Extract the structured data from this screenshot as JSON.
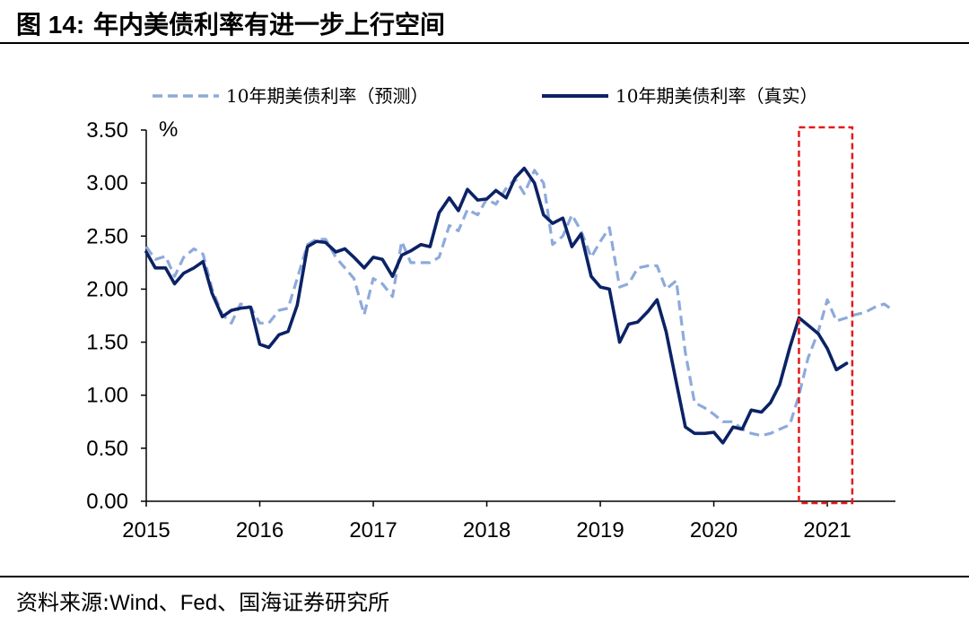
{
  "figure": {
    "label": "图 14:",
    "title": "年内美债利率有进一步上行空间",
    "source_prefix": "资料来源:",
    "source_body": "Wind、Fed、国海证券研究所"
  },
  "chart_data": {
    "type": "line",
    "title": "年内美债利率有进一步上行空间",
    "xlabel": "",
    "ylabel": "%",
    "ylim": [
      0,
      3.5
    ],
    "xlim": [
      2015.0,
      2021.6
    ],
    "y_ticks": [
      "0.00",
      "0.50",
      "1.00",
      "1.50",
      "2.00",
      "2.50",
      "3.00",
      "3.50"
    ],
    "x_ticks": [
      "2015",
      "2016",
      "2017",
      "2018",
      "2019",
      "2020",
      "2021"
    ],
    "grid": false,
    "legend_position": "top",
    "highlight_box": {
      "x_range": [
        2020.75,
        2021.22
      ],
      "y_range": [
        0,
        3.5
      ],
      "color": "#e31a1c"
    },
    "series": [
      {
        "name": "10年期美债利率（预测）",
        "style": "dashed",
        "color": "#8eaadb",
        "x": [
          2015.0,
          2015.08,
          2015.17,
          2015.25,
          2015.33,
          2015.42,
          2015.5,
          2015.58,
          2015.67,
          2015.75,
          2015.83,
          2015.92,
          2016.0,
          2016.08,
          2016.17,
          2016.25,
          2016.33,
          2016.42,
          2016.5,
          2016.58,
          2016.67,
          2016.75,
          2016.83,
          2016.92,
          2017.0,
          2017.08,
          2017.17,
          2017.25,
          2017.33,
          2017.42,
          2017.5,
          2017.58,
          2017.67,
          2017.75,
          2017.83,
          2017.92,
          2018.0,
          2018.08,
          2018.17,
          2018.25,
          2018.33,
          2018.42,
          2018.5,
          2018.58,
          2018.67,
          2018.75,
          2018.83,
          2018.92,
          2019.0,
          2019.08,
          2019.17,
          2019.25,
          2019.33,
          2019.42,
          2019.5,
          2019.58,
          2019.67,
          2019.75,
          2019.83,
          2019.92,
          2020.0,
          2020.08,
          2020.17,
          2020.25,
          2020.33,
          2020.42,
          2020.5,
          2020.58,
          2020.67,
          2020.75,
          2020.83,
          2020.92,
          2021.0,
          2021.08,
          2021.17,
          2021.25,
          2021.33,
          2021.42,
          2021.5,
          2021.58
        ],
        "values": [
          2.4,
          2.28,
          2.31,
          2.12,
          2.3,
          2.38,
          2.33,
          2.0,
          1.76,
          1.68,
          1.86,
          1.83,
          1.68,
          1.68,
          1.8,
          1.82,
          2.1,
          2.42,
          2.47,
          2.47,
          2.3,
          2.2,
          2.1,
          1.76,
          2.1,
          2.05,
          1.93,
          2.45,
          2.25,
          2.25,
          2.25,
          2.3,
          2.6,
          2.55,
          2.75,
          2.7,
          2.85,
          2.8,
          2.95,
          3.04,
          2.9,
          3.12,
          3.0,
          2.42,
          2.5,
          2.7,
          2.55,
          2.3,
          2.45,
          2.58,
          2.02,
          2.05,
          2.2,
          2.22,
          2.22,
          2.0,
          2.08,
          1.4,
          0.93,
          0.88,
          0.82,
          0.75,
          0.75,
          0.68,
          0.64,
          0.62,
          0.64,
          0.68,
          0.72,
          1.0,
          1.35,
          1.6,
          1.9,
          1.7,
          1.73,
          1.76,
          1.78,
          1.83,
          1.86,
          1.8
        ]
      },
      {
        "name": "10年期美债利率（真实）",
        "style": "solid",
        "color": "#0b2265",
        "x": [
          2015.0,
          2015.08,
          2015.17,
          2015.25,
          2015.33,
          2015.42,
          2015.5,
          2015.58,
          2015.67,
          2015.75,
          2015.83,
          2015.92,
          2016.0,
          2016.08,
          2016.17,
          2016.25,
          2016.33,
          2016.42,
          2016.5,
          2016.58,
          2016.67,
          2016.75,
          2016.83,
          2016.92,
          2017.0,
          2017.08,
          2017.17,
          2017.25,
          2017.33,
          2017.42,
          2017.5,
          2017.58,
          2017.67,
          2017.75,
          2017.83,
          2017.92,
          2018.0,
          2018.08,
          2018.17,
          2018.25,
          2018.33,
          2018.42,
          2018.5,
          2018.58,
          2018.67,
          2018.75,
          2018.83,
          2018.92,
          2019.0,
          2019.08,
          2019.17,
          2019.25,
          2019.33,
          2019.42,
          2019.5,
          2019.58,
          2019.67,
          2019.75,
          2019.83,
          2019.92,
          2020.0,
          2020.08,
          2020.17,
          2020.25,
          2020.33,
          2020.42,
          2020.5,
          2020.58,
          2020.67,
          2020.75,
          2020.83,
          2020.92,
          2021.0,
          2021.08,
          2021.17
        ],
        "values": [
          2.35,
          2.2,
          2.2,
          2.05,
          2.15,
          2.2,
          2.26,
          1.96,
          1.74,
          1.8,
          1.82,
          1.83,
          1.48,
          1.45,
          1.57,
          1.6,
          1.85,
          2.4,
          2.45,
          2.44,
          2.35,
          2.38,
          2.3,
          2.2,
          2.3,
          2.28,
          2.12,
          2.32,
          2.36,
          2.42,
          2.4,
          2.72,
          2.86,
          2.74,
          2.94,
          2.84,
          2.85,
          2.93,
          2.86,
          3.05,
          3.14,
          3.0,
          2.7,
          2.62,
          2.67,
          2.4,
          2.52,
          2.12,
          2.02,
          2.0,
          1.5,
          1.67,
          1.69,
          1.79,
          1.9,
          1.6,
          1.12,
          0.7,
          0.64,
          0.64,
          0.65,
          0.55,
          0.7,
          0.68,
          0.86,
          0.84,
          0.93,
          1.1,
          1.45,
          1.73,
          1.66,
          1.58,
          1.44,
          1.24,
          1.3
        ]
      }
    ]
  }
}
